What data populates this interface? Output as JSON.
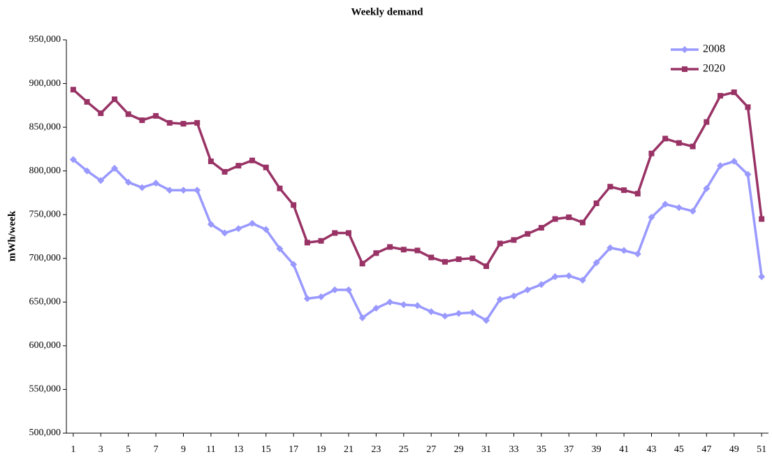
{
  "chart_data": {
    "type": "line",
    "title": "Weekly demand",
    "y_label": "mWh/week",
    "x": [
      1,
      2,
      3,
      4,
      5,
      6,
      7,
      8,
      9,
      10,
      11,
      12,
      13,
      14,
      15,
      16,
      17,
      18,
      19,
      20,
      21,
      22,
      23,
      24,
      25,
      26,
      27,
      28,
      29,
      30,
      31,
      32,
      33,
      34,
      35,
      36,
      37,
      38,
      39,
      40,
      41,
      42,
      43,
      44,
      45,
      46,
      47,
      48,
      49,
      50,
      51
    ],
    "xlim": [
      0.5,
      51.5
    ],
    "xticks": [
      1,
      3,
      5,
      7,
      9,
      11,
      13,
      15,
      17,
      19,
      21,
      23,
      25,
      27,
      29,
      31,
      33,
      35,
      37,
      39,
      41,
      43,
      45,
      47,
      49,
      51
    ],
    "ylim": [
      500000,
      950000
    ],
    "yticks": [
      {
        "value": 500000,
        "label": "500,000"
      },
      {
        "value": 550000,
        "label": "550,000"
      },
      {
        "value": 600000,
        "label": "600,000"
      },
      {
        "value": 650000,
        "label": "650,000"
      },
      {
        "value": 700000,
        "label": "700,000"
      },
      {
        "value": 750000,
        "label": "750,000"
      },
      {
        "value": 800000,
        "label": "800,000"
      },
      {
        "value": 850000,
        "label": "850,000"
      },
      {
        "value": 900000,
        "label": "900,000"
      },
      {
        "value": 950000,
        "label": "950,000"
      }
    ],
    "grid": false,
    "legend": "top-right",
    "series": [
      {
        "name": "2008",
        "color": "#9999ff",
        "marker": "diamond",
        "values": [
          813000,
          800000,
          789000,
          803000,
          787000,
          781000,
          786000,
          778000,
          778000,
          778000,
          739000,
          729000,
          734000,
          740000,
          733000,
          711000,
          693000,
          654000,
          656000,
          664000,
          664000,
          632000,
          643000,
          650000,
          647000,
          646000,
          639000,
          634000,
          637000,
          638000,
          629000,
          653000,
          657000,
          664000,
          670000,
          679000,
          680000,
          675000,
          695000,
          712000,
          709000,
          705000,
          747000,
          762000,
          758000,
          754000,
          780000,
          806000,
          811000,
          796000,
          679000
        ]
      },
      {
        "name": "2020",
        "color": "#993366",
        "marker": "square",
        "values": [
          893000,
          879000,
          866000,
          882000,
          865000,
          858000,
          863000,
          855000,
          854000,
          855000,
          811000,
          799000,
          806000,
          812000,
          804000,
          780000,
          761000,
          718000,
          720000,
          729000,
          729000,
          694000,
          706000,
          713000,
          710000,
          709000,
          701000,
          696000,
          699000,
          700000,
          691000,
          717000,
          721000,
          728000,
          735000,
          745000,
          747000,
          741000,
          763000,
          782000,
          778000,
          774000,
          820000,
          837000,
          832000,
          828000,
          856000,
          886000,
          890000,
          873000,
          745000
        ]
      }
    ]
  }
}
